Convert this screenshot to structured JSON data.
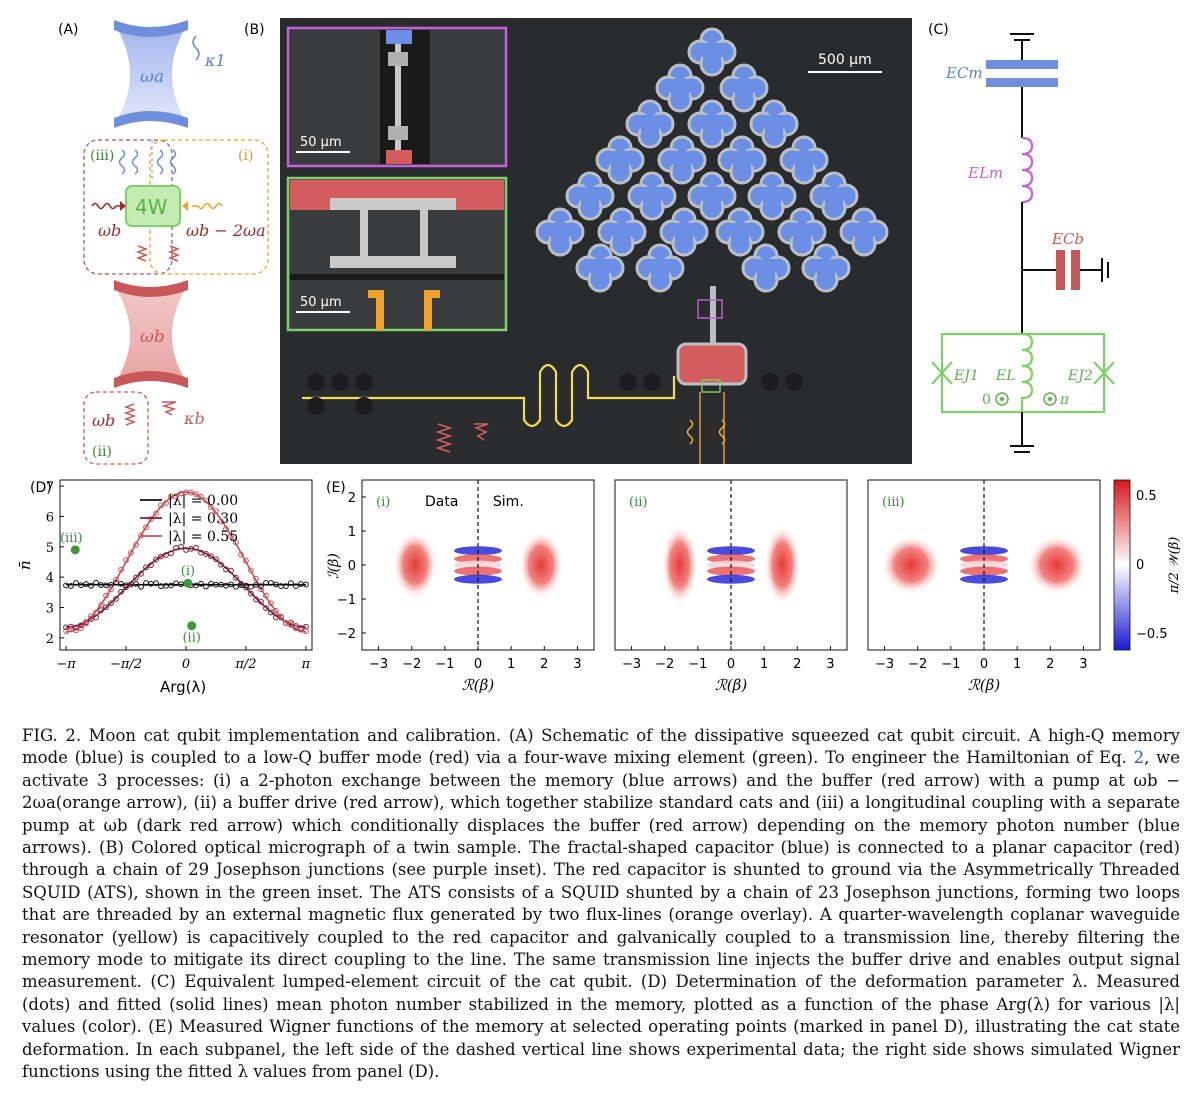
{
  "panels": {
    "A": {
      "label": "(A)",
      "omega_a": "ωa",
      "kappa_1": "κ1",
      "four_wave": "4W",
      "omega_b_left": "ωb",
      "pump_label": "ωb − 2ωa",
      "omega_b_mirror": "ωb",
      "omega_b_drive": "ωb",
      "kappa_b": "κb",
      "proc_i": "(i)",
      "proc_ii": "(ii)",
      "proc_iii": "(iii)",
      "colors": {
        "memory": "#6f8fdc",
        "buffer": "#c9585a",
        "mixer": "#7ed06a",
        "pump": "#f0a22b",
        "dark_red": "#a22a2a"
      }
    },
    "B": {
      "label": "(B)",
      "scale_main": "500 µm",
      "scale_inset1": "50 µm",
      "scale_inset2": "50 µm",
      "colors": {
        "fractal": "#6a8fe4",
        "pad": "#d35d5d",
        "resonator": "#f2e04a",
        "flux": "#f0a22b",
        "inset1_border": "#c460d8",
        "inset2_border": "#7ed06a"
      }
    },
    "C": {
      "label": "(C)",
      "E_Cm": "ECm",
      "E_Lm": "ELm",
      "E_Cb": "ECb",
      "E_J1": "EJ1",
      "E_L": "EL",
      "E_J2": "EJ2",
      "flux_0": "0",
      "flux_pi": "π"
    },
    "D": {
      "label": "(D)",
      "ylabel": "n̄",
      "xlabel": "Arg(λ)",
      "points": {
        "i": "(i)",
        "ii": "(ii)",
        "iii": "(iii)"
      }
    },
    "E": {
      "label": "(E)",
      "sub_i": "(i)",
      "sub_ii": "(ii)",
      "sub_iii": "(iii)",
      "data_label": "Data",
      "sim_label": "Sim.",
      "xlabel": "ℛ(β)",
      "ylabel": "ℐ(β)",
      "cbar_label": "π/2 𝒲(β)",
      "cbar_ticks": [
        "0.5",
        "0",
        "−0.5"
      ],
      "xticks": [
        "−3",
        "−2",
        "−1",
        "0",
        "1",
        "2",
        "3"
      ],
      "yticks": [
        "2",
        "1",
        "0",
        "−1",
        "−2"
      ]
    }
  },
  "chart_data": {
    "type": "scatter",
    "xlabel": "Arg(λ)",
    "ylabel": "n̄",
    "xlim": [
      -3.3,
      3.3
    ],
    "ylim": [
      1.6,
      7.2
    ],
    "xticks": [
      {
        "v": -3.1416,
        "label": "−π"
      },
      {
        "v": -1.5708,
        "label": "−π/2"
      },
      {
        "v": 0,
        "label": "0"
      },
      {
        "v": 1.5708,
        "label": "π/2"
      },
      {
        "v": 3.1416,
        "label": "π"
      }
    ],
    "yticks": [
      2,
      3,
      4,
      5,
      6,
      7
    ],
    "legend_position": "top-right",
    "series": [
      {
        "name": "|λ| = 0.00",
        "color": "#111111",
        "fit_center": 3.75,
        "fit_amp": 0.0,
        "noise_seed": 3
      },
      {
        "name": "|λ| = 0.30",
        "color": "#7a1e3e",
        "fit_center": 3.65,
        "fit_amp": 1.3,
        "noise_seed": 7
      },
      {
        "name": "|λ| = 0.55",
        "color": "#c8505a",
        "fit_center": 4.5,
        "fit_amp": 2.3,
        "noise_seed": 11
      }
    ],
    "highlight_points": [
      {
        "label": "(i)",
        "x": 0.05,
        "y": 3.8
      },
      {
        "label": "(ii)",
        "x": 0.15,
        "y": 2.4
      },
      {
        "label": "(iii)",
        "x": -2.9,
        "y": 4.9
      }
    ]
  },
  "caption": {
    "fig_num": "FIG. 2.",
    "body": "Moon cat qubit implementation and calibration. (A) Schematic of the dissipative squeezed cat qubit circuit. A high-Q memory mode (blue) is coupled to a low-Q buffer mode (red) via a four-wave mixing element (green). To engineer the Hamiltonian of Eq. ",
    "eq_ref": "2",
    "body2": ", we activate 3 processes: (i) a 2-photon exchange between the memory (blue arrows) and the buffer (red arrow) with a pump at ωb − 2ωa(orange arrow), (ii) a buffer drive (red arrow), which together stabilize standard cats and (iii) a longitudinal coupling with a separate pump at ωb (dark red arrow) which conditionally displaces the buffer (red arrow) depending on the memory photon number (blue arrows). (B) Colored optical micrograph of a twin sample. The fractal-shaped capacitor (blue) is connected to a planar capacitor (red) through a chain of 29 Josephson junctions (see purple inset). The red capacitor is shunted to ground via the Asymmetrically Threaded SQUID (ATS), shown in the green inset. The ATS consists of a SQUID shunted by a chain of 23 Josephson junctions, forming two loops that are threaded by an external magnetic flux generated by two flux-lines (orange overlay). A quarter-wavelength coplanar waveguide resonator (yellow) is capacitively coupled to the red capacitor and galvanically coupled to a transmission line, thereby filtering the memory mode to mitigate its direct coupling to the line. The same transmission line injects the buffer drive and enables output signal measurement. (C) Equivalent lumped-element circuit of the cat qubit. (D) Determination of the deformation parameter λ. Measured (dots) and fitted (solid lines) mean photon number stabilized in the memory, plotted as a function of the phase Arg(λ) for various |λ| values (color). (E) Measured Wigner functions of the memory at selected operating points (marked in panel D), illustrating the cat state deformation. In each subpanel, the left side of the dashed vertical line shows experimental data; the right side shows simulated Wigner functions using the fitted λ values from panel (D)."
  }
}
